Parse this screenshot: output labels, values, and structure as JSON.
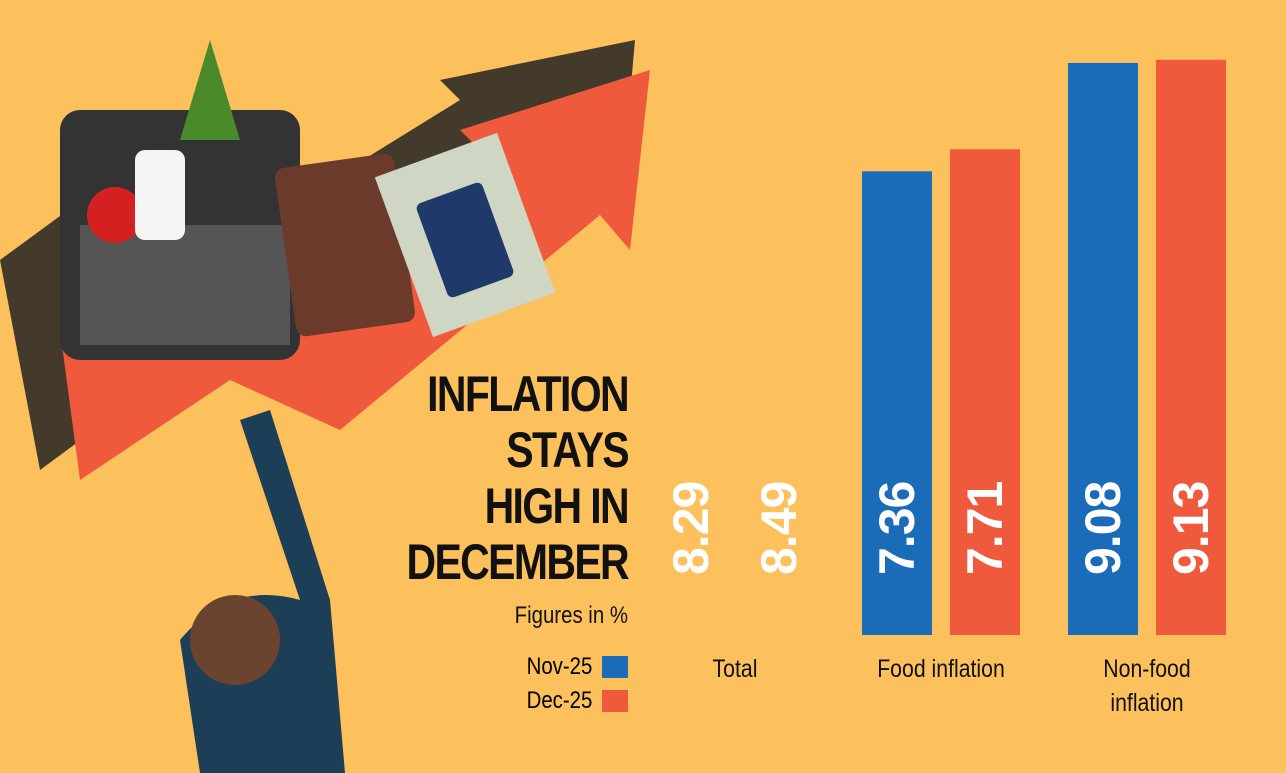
{
  "chart_data": {
    "type": "bar",
    "title": [
      "INFLATION",
      "STAYS",
      "HIGH IN",
      "DECEMBER"
    ],
    "subtitle": "Figures in %",
    "categories": [
      "Total",
      "Food inflation",
      "Non-food inflation"
    ],
    "series": [
      {
        "name": "Nov-25",
        "color": "#1a6bb8",
        "bar_colors": [
          "#fcc05c",
          "#1a6bb8",
          "#1a6bb8"
        ],
        "values": [
          8.29,
          7.36,
          9.08
        ]
      },
      {
        "name": "Dec-25",
        "color": "#f05a3c",
        "bar_colors": [
          "#fcc05c",
          "#f05a3c",
          "#f05a3c"
        ],
        "values": [
          8.49,
          7.71,
          9.13
        ]
      }
    ],
    "ylim": [
      0,
      10
    ],
    "background": "#fcc05c"
  }
}
